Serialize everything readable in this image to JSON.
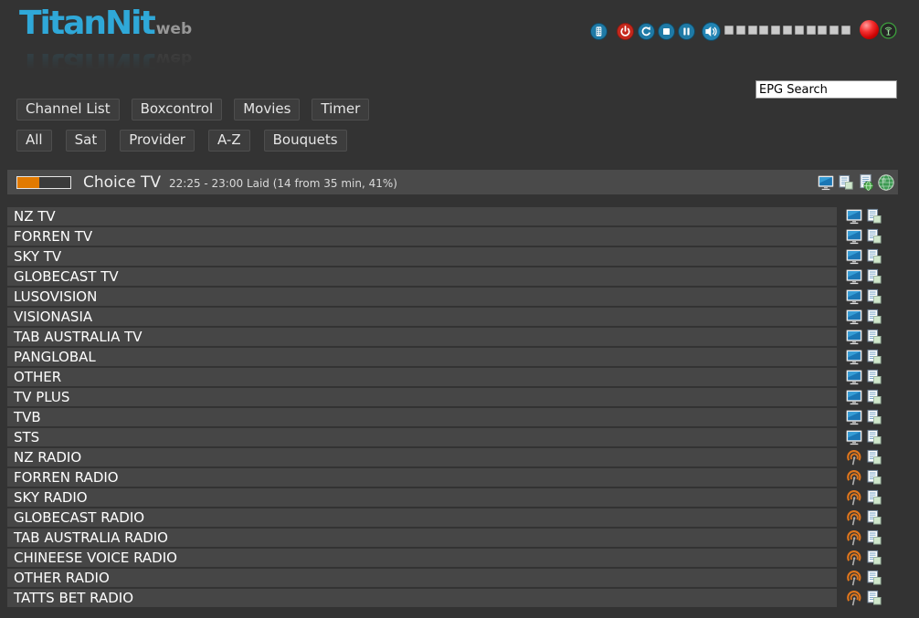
{
  "app": {
    "logo": {
      "main": "TitanNit",
      "sub": "web"
    }
  },
  "topbar": {
    "controls": [
      {
        "name": "remote-control",
        "icon": "remote-icon"
      },
      {
        "name": "power",
        "icon": "power-icon"
      },
      {
        "name": "reload",
        "icon": "reload-icon"
      },
      {
        "name": "stop",
        "icon": "stop-icon"
      },
      {
        "name": "pause",
        "icon": "pause-icon"
      },
      {
        "name": "volume-mute",
        "icon": "speaker-icon"
      }
    ],
    "volume": {
      "segments": 11,
      "level": 0
    },
    "status": [
      {
        "name": "record-indicator",
        "icon": "red-ball-icon",
        "color": "#cf0505"
      },
      {
        "name": "stream-indicator",
        "icon": "antenna-icon",
        "color": "#46a046"
      }
    ]
  },
  "search": {
    "value": "EPG Search"
  },
  "nav": {
    "primary": [
      {
        "label": "Channel List"
      },
      {
        "label": "Boxcontrol"
      },
      {
        "label": "Movies"
      },
      {
        "label": "Timer"
      }
    ],
    "filters": [
      {
        "label": "All"
      },
      {
        "label": "Sat"
      },
      {
        "label": "Provider"
      },
      {
        "label": "A-Z"
      },
      {
        "label": "Bouquets"
      }
    ]
  },
  "now_playing": {
    "channel": "Choice TV",
    "epg_info": "22:25 - 23:00 Laid (14 from 35 min, 41%)",
    "progress_percent": 41,
    "actions": [
      {
        "name": "watch-tv",
        "icon": "monitor-icon"
      },
      {
        "name": "epg-list",
        "icon": "pages-icon"
      },
      {
        "name": "web-epg",
        "icon": "page-globe-icon"
      },
      {
        "name": "stream",
        "icon": "globe-icon"
      }
    ]
  },
  "channel_list": {
    "row_actions": [
      {
        "name": "zap",
        "icon": "monitor-icon-or-radio-icon"
      },
      {
        "name": "epg",
        "icon": "pages-icon"
      }
    ],
    "channels": [
      {
        "name": "NZ TV",
        "type": "tv"
      },
      {
        "name": "FORREN TV",
        "type": "tv"
      },
      {
        "name": "SKY TV",
        "type": "tv"
      },
      {
        "name": "GLOBECAST TV",
        "type": "tv"
      },
      {
        "name": "LUSOVISION",
        "type": "tv"
      },
      {
        "name": "VISIONASIA",
        "type": "tv"
      },
      {
        "name": "TAB AUSTRALIA TV",
        "type": "tv"
      },
      {
        "name": "PANGLOBAL",
        "type": "tv"
      },
      {
        "name": "OTHER",
        "type": "tv"
      },
      {
        "name": "TV PLUS",
        "type": "tv"
      },
      {
        "name": "TVB",
        "type": "tv"
      },
      {
        "name": "STS",
        "type": "tv"
      },
      {
        "name": "NZ RADIO",
        "type": "radio"
      },
      {
        "name": "FORREN RADIO",
        "type": "radio"
      },
      {
        "name": "SKY RADIO",
        "type": "radio"
      },
      {
        "name": "GLOBECAST RADIO",
        "type": "radio"
      },
      {
        "name": "TAB AUSTRALIA RADIO",
        "type": "radio"
      },
      {
        "name": "CHINEESE VOICE RADIO",
        "type": "radio"
      },
      {
        "name": "OTHER RADIO",
        "type": "radio"
      },
      {
        "name": "TATTS BET RADIO",
        "type": "radio"
      }
    ]
  },
  "colors": {
    "page_bg": "#333333",
    "row_bg": "#464646",
    "bar_bg": "#4a4a4a",
    "button_bg": "#3d3d3d",
    "logo_cyan": "#2fa8d8",
    "accent_orange": "#e27a00",
    "icon_blue": "#1f7aa6",
    "power_red": "#c5281c",
    "record_red": "#cf0505",
    "stream_green": "#46a046"
  }
}
